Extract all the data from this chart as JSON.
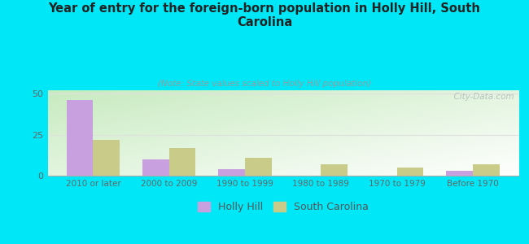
{
  "title": "Year of entry for the foreign-born population in Holly Hill, South\nCarolina",
  "subtitle": "(Note: State values scaled to Holly Hill population)",
  "categories": [
    "2010 or later",
    "2000 to 2009",
    "1990 to 1999",
    "1980 to 1989",
    "1970 to 1979",
    "Before 1970"
  ],
  "holly_hill": [
    46,
    10,
    4,
    0,
    0,
    3
  ],
  "south_carolina": [
    22,
    17,
    11,
    7,
    5,
    7
  ],
  "holly_hill_color": "#c8a0e0",
  "south_carolina_color": "#c8cc88",
  "background_color": "#00e8f8",
  "title_color": "#222222",
  "subtitle_color": "#999999",
  "ylabel_ticks": [
    0,
    25,
    50
  ],
  "ylim": [
    0,
    52
  ],
  "bar_width": 0.35,
  "watermark": "  City-Data.com"
}
